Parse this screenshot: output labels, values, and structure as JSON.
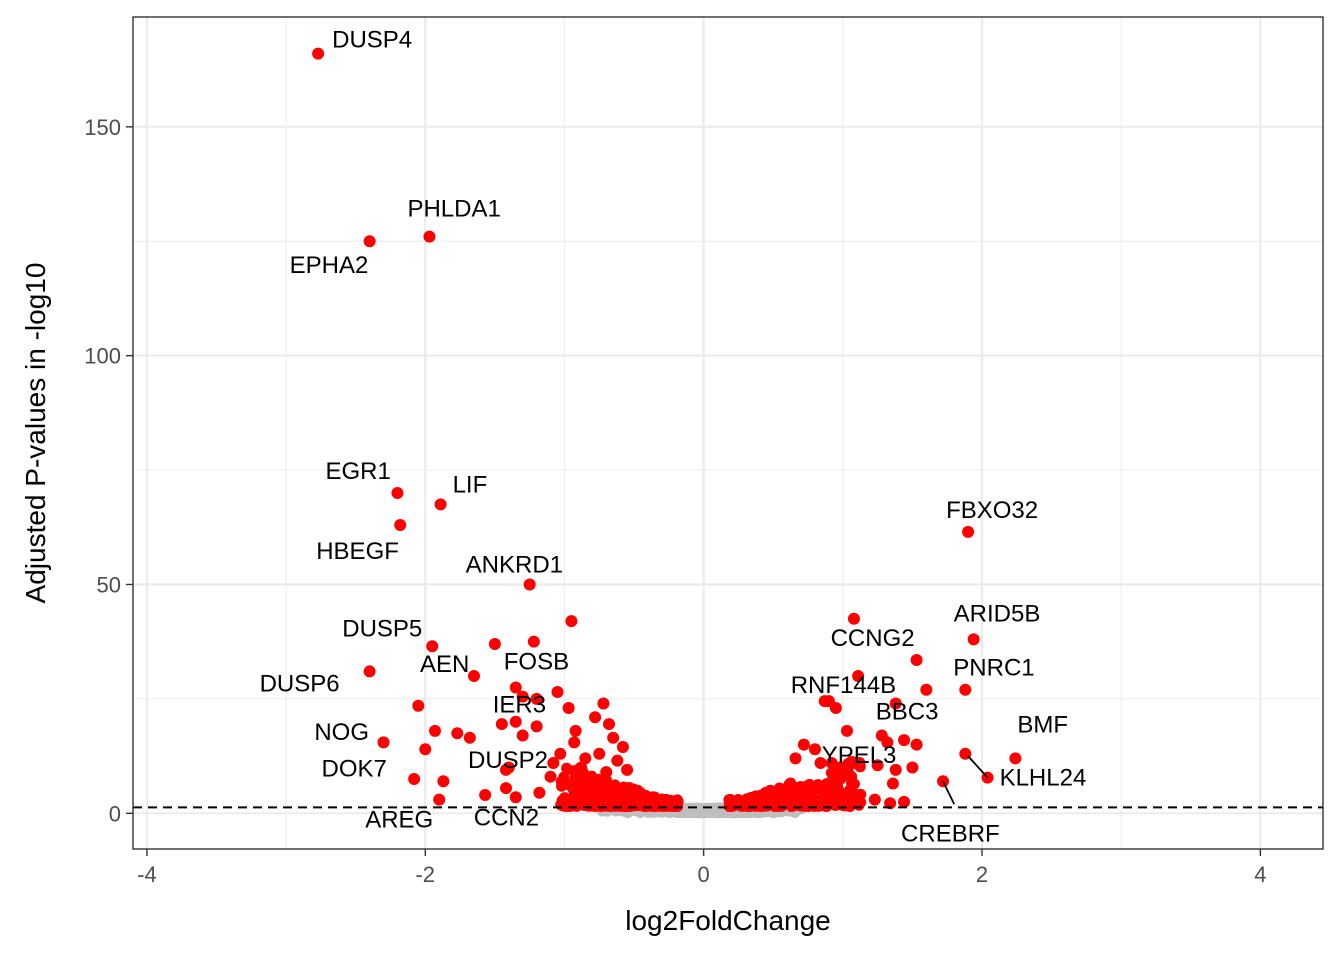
{
  "chart_data": {
    "type": "scatter",
    "title": "",
    "xlabel": "log2FoldChange",
    "ylabel": "Adjusted P-values in -log10",
    "xlim": [
      -4.1,
      4.45
    ],
    "ylim": [
      -7.8,
      174
    ],
    "x_ticks": [
      -4,
      -2,
      0,
      2,
      4
    ],
    "x_tick_labels": [
      "-4",
      "-2",
      "0",
      "2",
      "4"
    ],
    "y_ticks": [
      0,
      50,
      100,
      150
    ],
    "y_tick_labels": [
      "0",
      "50",
      "100",
      "150"
    ],
    "grid": true,
    "legend": "none",
    "threshold_line": {
      "y": 1.3,
      "style": "dashed"
    },
    "colors": {
      "significant": "#ff0000",
      "not_significant": "#bebebe",
      "grid": "#ebebeb",
      "panel_border": "#333333",
      "threshold": "#000000"
    },
    "labeled_points": [
      {
        "gene": "DUSP4",
        "x": -2.77,
        "y": 166
      },
      {
        "gene": "PHLDA1",
        "x": -1.97,
        "y": 126
      },
      {
        "gene": "EPHA2",
        "x": -2.4,
        "y": 125
      },
      {
        "gene": "EGR1",
        "x": -2.2,
        "y": 70
      },
      {
        "gene": "LIF",
        "x": -1.89,
        "y": 67.5
      },
      {
        "gene": "HBEGF",
        "x": -2.18,
        "y": 63
      },
      {
        "gene": "ANKRD1",
        "x": -1.25,
        "y": 50
      },
      {
        "gene": "DUSP5",
        "x": -1.95,
        "y": 36.5
      },
      {
        "gene": "DUSP6",
        "x": -2.4,
        "y": 31
      },
      {
        "gene": "AEN",
        "x": -1.65,
        "y": 30
      },
      {
        "gene": "FOSB",
        "x": -1.35,
        "y": 27.5
      },
      {
        "gene": "IER3",
        "x": -1.3,
        "y": 25.5
      },
      {
        "gene": "NOG",
        "x": -2.05,
        "y": 23.5
      },
      {
        "gene": "DOK7",
        "x": -2.3,
        "y": 15.5
      },
      {
        "gene": "DUSP2",
        "x": -1.42,
        "y": 9.5
      },
      {
        "gene": "AREG",
        "x": -1.9,
        "y": 3
      },
      {
        "gene": "CCN2",
        "x": -1.35,
        "y": 3.5
      },
      {
        "gene": "FBXO32",
        "x": 1.9,
        "y": 61.5
      },
      {
        "gene": "ARID5B",
        "x": 1.94,
        "y": 38
      },
      {
        "gene": "CCNG2",
        "x": 1.53,
        "y": 33.5
      },
      {
        "gene": "PNRC1",
        "x": 1.88,
        "y": 27
      },
      {
        "gene": "RNF144B",
        "x": 0.87,
        "y": 24.5
      },
      {
        "gene": "BBC3",
        "x": 1.28,
        "y": 17
      },
      {
        "gene": "BMF",
        "x": 2.24,
        "y": 12
      },
      {
        "gene": "KLHL24",
        "x": 2.04,
        "y": 7.8
      },
      {
        "gene": "YPEL3",
        "x": 0.92,
        "y": 11
      },
      {
        "gene": "CREBRF",
        "x": 1.72,
        "y": 7
      }
    ],
    "other_significant_points": [
      [
        -0.95,
        42
      ],
      [
        -1.22,
        37.5
      ],
      [
        -1.5,
        37
      ],
      [
        -1.2,
        25
      ],
      [
        -1.05,
        26.5
      ],
      [
        -0.97,
        23
      ],
      [
        -1.35,
        20
      ],
      [
        -1.45,
        19.5
      ],
      [
        -1.77,
        17.5
      ],
      [
        -1.68,
        16.5
      ],
      [
        -1.93,
        18
      ],
      [
        -1.2,
        19
      ],
      [
        -1.3,
        17
      ],
      [
        -2.0,
        14
      ],
      [
        -0.72,
        24
      ],
      [
        -0.78,
        21
      ],
      [
        -0.58,
        14.5
      ],
      [
        -1.4,
        10
      ],
      [
        -1.1,
        8
      ],
      [
        -1.87,
        7
      ],
      [
        -2.08,
        7.5
      ],
      [
        -1.57,
        4
      ],
      [
        -1.42,
        5.5
      ],
      [
        -1.18,
        4.5
      ],
      [
        -0.85,
        12
      ],
      [
        -0.93,
        15.5
      ],
      [
        -1.03,
        13
      ],
      [
        -1.08,
        11
      ],
      [
        -0.88,
        10
      ],
      [
        -0.7,
        9
      ],
      [
        -0.68,
        19.5
      ],
      [
        -0.65,
        16.5
      ],
      [
        -0.92,
        18
      ],
      [
        -0.75,
        13
      ],
      [
        -0.62,
        11.5
      ],
      [
        -0.55,
        9.5
      ],
      [
        1.08,
        42.5
      ],
      [
        1.11,
        30
      ],
      [
        1.6,
        27
      ],
      [
        1.38,
        24
      ],
      [
        0.95,
        23
      ],
      [
        0.9,
        24.5
      ],
      [
        1.03,
        18
      ],
      [
        1.44,
        16
      ],
      [
        1.32,
        15.5
      ],
      [
        1.53,
        15
      ],
      [
        1.88,
        13
      ],
      [
        0.72,
        15
      ],
      [
        0.8,
        14
      ],
      [
        0.84,
        11
      ],
      [
        0.66,
        12
      ],
      [
        1.38,
        9.5
      ],
      [
        1.5,
        10
      ],
      [
        1.25,
        10.5
      ],
      [
        1.06,
        8
      ],
      [
        1.12,
        11
      ],
      [
        0.98,
        7.5
      ],
      [
        1.36,
        6.5
      ],
      [
        1.23,
        3
      ],
      [
        1.34,
        2.2
      ],
      [
        1.44,
        2.5
      ],
      [
        1.1,
        4
      ],
      [
        0.88,
        5
      ],
      [
        0.75,
        6
      ]
    ]
  }
}
